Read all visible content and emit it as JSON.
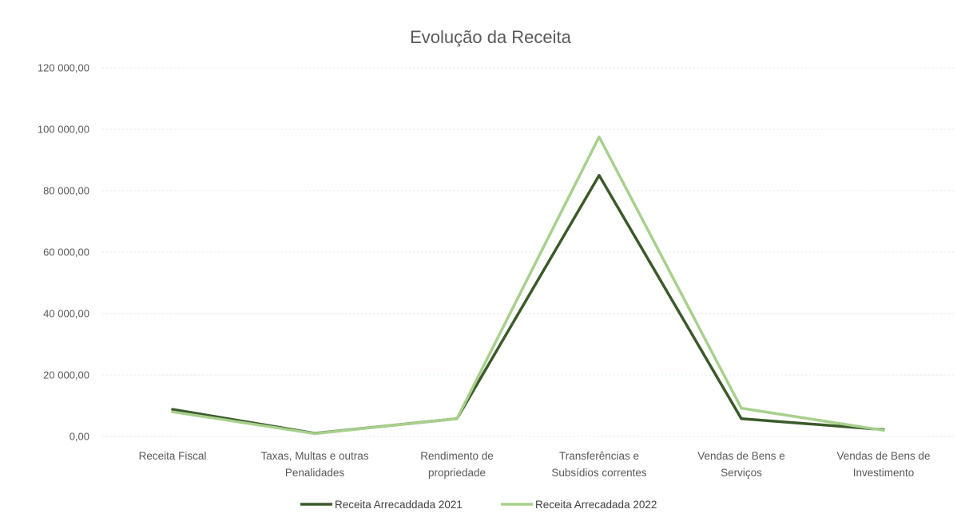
{
  "chart_data": {
    "type": "line",
    "title": "Evolução da Receita",
    "categories": [
      "Receita Fiscal",
      "Taxas, Multas e outras Penalidades",
      "Rendimento de propriedade",
      "Transferências e Subsídios correntes",
      "Vendas de Bens e Serviços",
      "Vendas de Bens de Investimento"
    ],
    "category_lines": [
      [
        "Receita Fiscal"
      ],
      [
        "Taxas, Multas e outras",
        "Penalidades"
      ],
      [
        "Rendimento de",
        "propriedade"
      ],
      [
        "Transferências e",
        "Subsídios correntes"
      ],
      [
        "Vendas de Bens e",
        "Serviços"
      ],
      [
        "Vendas de Bens de",
        "Investimento"
      ]
    ],
    "series": [
      {
        "name": "Receita Arrecaddada 2021",
        "color": "#3b5a2a",
        "values": [
          8800,
          1000,
          5800,
          85000,
          5800,
          2200
        ]
      },
      {
        "name": "Receita Arrecadada 2022",
        "color": "#a8d08d",
        "values": [
          8000,
          900,
          5800,
          97500,
          9200,
          2000
        ]
      }
    ],
    "yticks": [
      "0,00",
      "20 000,00",
      "40 000,00",
      "60 000,00",
      "80 000,00",
      "100 000,00",
      "120 000,00"
    ],
    "ylim": [
      0,
      120000
    ],
    "grid": true,
    "legend_position": "bottom"
  }
}
